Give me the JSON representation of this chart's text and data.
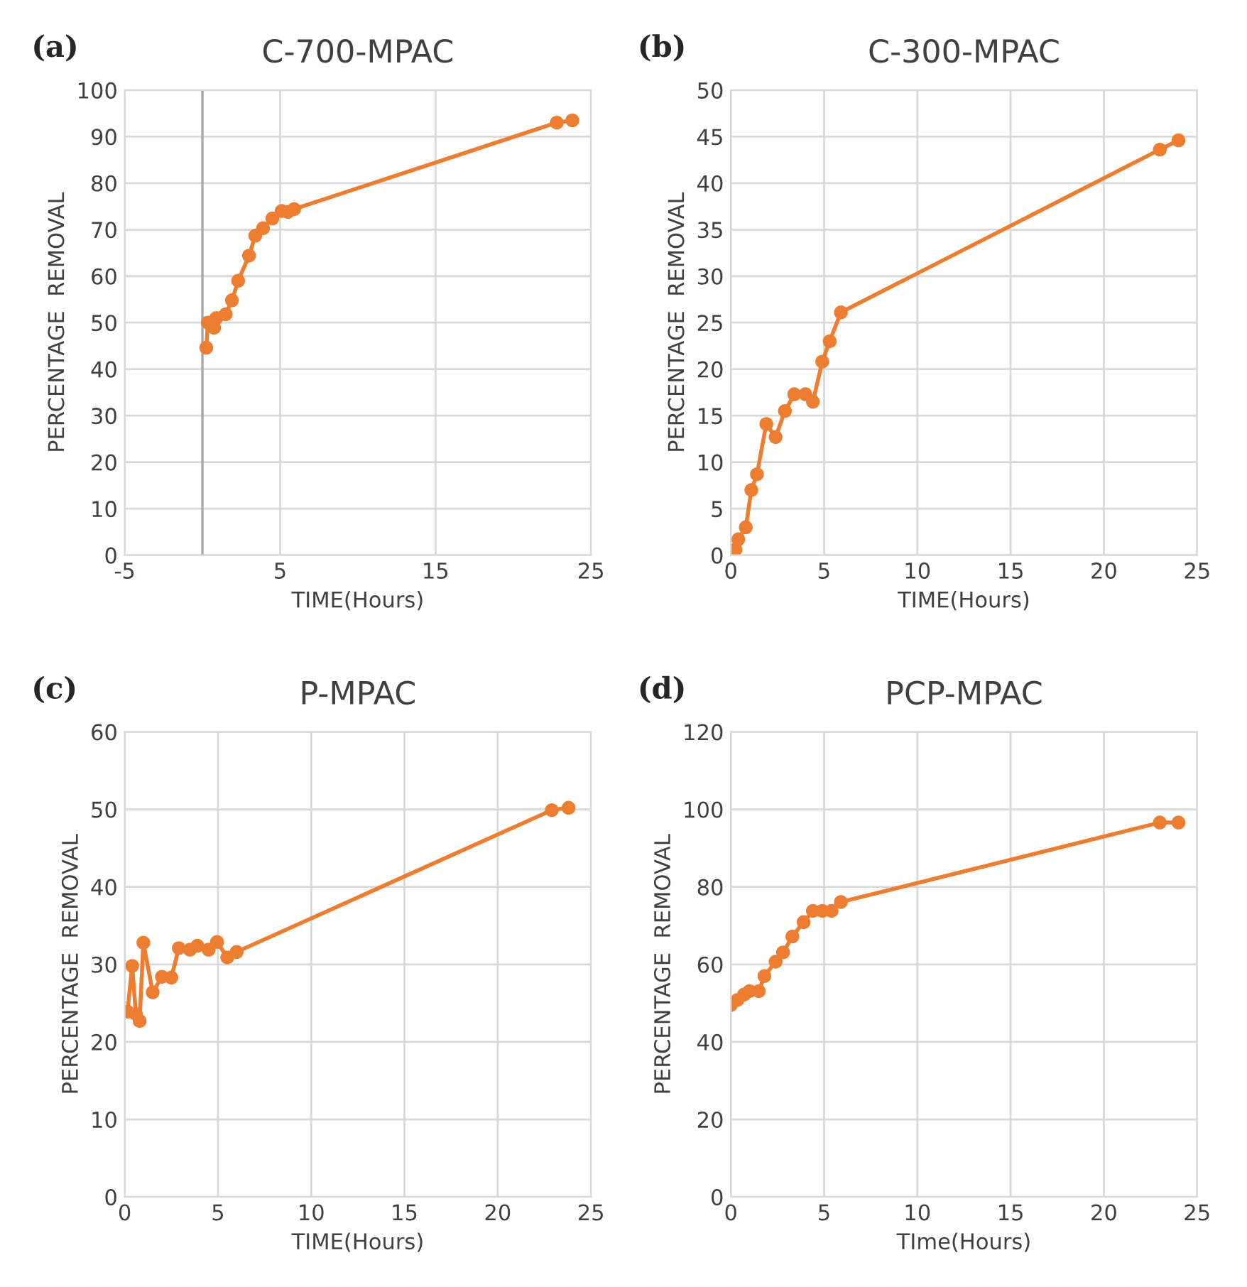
{
  "chart_data": [
    {
      "type": "line",
      "title": "C-700-MPAC",
      "xlabel": "TIME(Hours)",
      "ylabel": "PERCENTAGE  REMOVAL",
      "annotations": [
        "(a)"
      ],
      "grid": true,
      "marker": "circle",
      "line_style": "solid",
      "xlim": [
        -5,
        25
      ],
      "xticks": [
        -5,
        5,
        15,
        25
      ],
      "ylim": [
        0,
        100
      ],
      "yticks": [
        0,
        10,
        20,
        30,
        40,
        50,
        60,
        70,
        80,
        90,
        100
      ],
      "ref_lines": [
        {
          "axis": "x",
          "value": 0,
          "color": "#a6a6a6"
        }
      ],
      "series": [
        {
          "color": "#ed7d31",
          "x": [
            0.25,
            0.35,
            0.75,
            0.9,
            1.5,
            1.9,
            2.3,
            3,
            3.4,
            3.9,
            4.5,
            5.1,
            5.5,
            5.9,
            22.8,
            23.8
          ],
          "values": [
            44.6,
            50,
            48.9,
            51,
            51.8,
            54.8,
            59,
            64.4,
            68.7,
            70.3,
            72.4,
            74,
            73.8,
            74.4,
            93,
            93.5
          ]
        }
      ]
    },
    {
      "type": "line",
      "title": "C-300-MPAC",
      "xlabel": "TIME(Hours)",
      "ylabel": "PERCENTAGE  REMOVAL",
      "annotations": [
        "(b)"
      ],
      "grid": true,
      "marker": "circle",
      "line_style": "solid",
      "xlim": [
        0,
        25
      ],
      "xticks": [
        0,
        5,
        10,
        15,
        20,
        25
      ],
      "ylim": [
        0,
        50
      ],
      "yticks": [
        0,
        5,
        10,
        15,
        20,
        25,
        30,
        35,
        40,
        45,
        50
      ],
      "series": [
        {
          "color": "#ed7d31",
          "x": [
            0.25,
            0.4,
            0.8,
            1.1,
            1.4,
            1.9,
            2.4,
            2.9,
            3.4,
            4,
            4.4,
            4.9,
            5.3,
            5.9,
            23,
            24
          ],
          "values": [
            0.6,
            1.7,
            3,
            7,
            8.7,
            14.1,
            12.7,
            15.5,
            17.3,
            17.3,
            16.5,
            20.8,
            23,
            26.1,
            43.6,
            44.6
          ]
        }
      ]
    },
    {
      "type": "line",
      "title": "P-MPAC",
      "xlabel": "TIME(Hours)",
      "ylabel": "PERCENTAGE  REMOVAL",
      "annotations": [
        "(c)"
      ],
      "grid": true,
      "marker": "circle",
      "line_style": "solid",
      "xlim": [
        0,
        25
      ],
      "xticks": [
        0,
        5,
        10,
        15,
        20,
        25
      ],
      "ylim": [
        0,
        60
      ],
      "yticks": [
        0,
        10,
        20,
        30,
        40,
        50,
        60
      ],
      "series": [
        {
          "color": "#ed7d31",
          "x": [
            0.15,
            0.4,
            0.6,
            0.8,
            1,
            1.5,
            2,
            2.5,
            2.9,
            3.5,
            3.9,
            4.5,
            4.95,
            5.5,
            6,
            22.9,
            23.8
          ],
          "values": [
            23.9,
            29.8,
            23.6,
            22.7,
            32.8,
            26.4,
            28.4,
            28.3,
            32.1,
            31.9,
            32.4,
            31.9,
            32.9,
            30.9,
            31.6,
            49.9,
            50.2
          ]
        }
      ]
    },
    {
      "type": "line",
      "title": "PCP-MPAC",
      "xlabel": "TIme(Hours)",
      "ylabel": "PERCENTAGE  REMOVAL",
      "annotations": [
        "(d)"
      ],
      "grid": true,
      "marker": "circle",
      "line_style": "solid",
      "xlim": [
        0,
        25
      ],
      "xticks": [
        0,
        5,
        10,
        15,
        20,
        25
      ],
      "ylim": [
        0,
        120
      ],
      "yticks": [
        0,
        20,
        40,
        60,
        80,
        100,
        120
      ],
      "series": [
        {
          "color": "#ed7d31",
          "x": [
            0,
            0.35,
            0.7,
            1,
            1.5,
            1.8,
            2.4,
            2.8,
            3.3,
            3.9,
            4.4,
            4.9,
            5.4,
            5.9,
            23,
            24
          ],
          "values": [
            49.5,
            50.8,
            52.2,
            53.1,
            53.1,
            57,
            60.7,
            63.1,
            67.2,
            70.9,
            73.8,
            73.8,
            73.8,
            76.1,
            96.6,
            96.6
          ]
        }
      ]
    }
  ]
}
